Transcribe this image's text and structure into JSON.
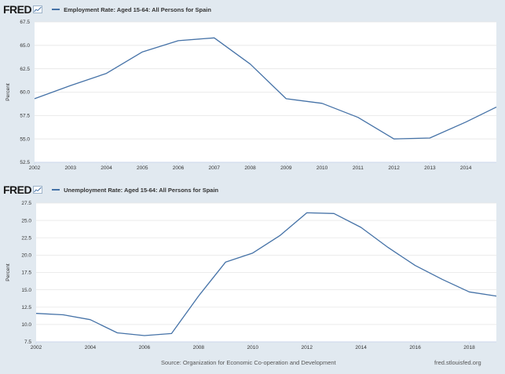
{
  "colors": {
    "line": "#4572a7",
    "plot_bg": "#ffffff",
    "page_bg": "#e1e9f0",
    "grid": "#e6e6e6"
  },
  "brand": {
    "logo_text": "FRED",
    "logo_icon": "fred-chart-icon"
  },
  "footer": {
    "source": "Source: Organization for Economic Co-operation and Development",
    "site": "fred.stlouisfed.org"
  },
  "chart_data": [
    {
      "type": "line",
      "title": "Employment Rate: Aged 15-64: All Persons for Spain",
      "ylabel": "Percent",
      "xlabel": "",
      "ylim": [
        52.5,
        67.5
      ],
      "xlim": [
        2002,
        2014.85
      ],
      "yticks": [
        "52.5",
        "55.0",
        "57.5",
        "60.0",
        "62.5",
        "65.0",
        "67.5"
      ],
      "xticks": [
        "2002",
        "2003",
        "2004",
        "2005",
        "2006",
        "2007",
        "2008",
        "2009",
        "2010",
        "2011",
        "2012",
        "2013",
        "2014"
      ],
      "grid": true,
      "series": [
        {
          "name": "Employment Rate: Aged 15-64: All Persons for Spain",
          "x": [
            2002,
            2003,
            2004,
            2005,
            2006,
            2007,
            2008,
            2009,
            2010,
            2011,
            2012,
            2013,
            2014,
            2014.85
          ],
          "values": [
            59.3,
            60.7,
            62.0,
            64.3,
            65.5,
            65.8,
            63.0,
            59.3,
            58.8,
            57.3,
            55.0,
            55.1,
            56.8,
            58.4
          ]
        }
      ]
    },
    {
      "type": "line",
      "title": "Unemployment Rate: Aged 15-64: All Persons for Spain",
      "ylabel": "Percent",
      "xlabel": "",
      "ylim": [
        7.5,
        27.5
      ],
      "xlim": [
        2002,
        2019
      ],
      "yticks": [
        "7.5",
        "10.0",
        "12.5",
        "15.0",
        "17.5",
        "20.0",
        "22.5",
        "25.0",
        "27.5"
      ],
      "xticks": [
        "2002",
        "2004",
        "2006",
        "2008",
        "2010",
        "2012",
        "2014",
        "2016",
        "2018"
      ],
      "grid": true,
      "series": [
        {
          "name": "Unemployment Rate: Aged 15-64: All Persons for Spain",
          "x": [
            2002,
            2003,
            2004,
            2005,
            2006,
            2007,
            2008,
            2009,
            2010,
            2011,
            2012,
            2013,
            2014,
            2015,
            2016,
            2017,
            2018,
            2019
          ],
          "values": [
            11.6,
            11.4,
            10.7,
            8.8,
            8.4,
            8.7,
            14.1,
            19.0,
            20.3,
            22.8,
            26.1,
            26.0,
            24.0,
            21.1,
            18.5,
            16.5,
            14.7,
            14.1
          ]
        }
      ]
    }
  ]
}
